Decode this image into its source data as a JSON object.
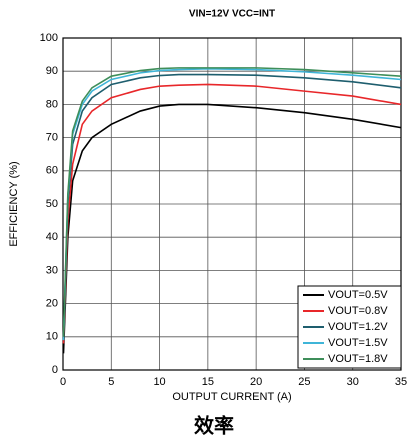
{
  "chart_data": {
    "type": "line",
    "title": "VIN=12V VCC=INT",
    "x_label": "OUTPUT CURRENT (A)",
    "y_label": "EFFICIENCY (%)",
    "caption": "效率",
    "x": [
      0.05,
      0.5,
      1,
      2,
      3,
      5,
      8,
      10,
      12,
      15,
      20,
      25,
      30,
      35
    ],
    "series": [
      {
        "name": "VOUT=0.5V",
        "color": "#000000",
        "values": [
          5,
          40,
          57,
          66,
          70,
          74,
          78,
          79.5,
          80,
          80,
          79,
          77.5,
          75.5,
          73
        ]
      },
      {
        "name": "VOUT=0.8V",
        "color": "#e8272a",
        "values": [
          8,
          45,
          62,
          74,
          78,
          82,
          84.5,
          85.5,
          85.8,
          86,
          85.5,
          84,
          82.5,
          80
        ]
      },
      {
        "name": "VOUT=1.2V",
        "color": "#1e5e6e",
        "values": [
          9,
          50,
          68,
          78,
          82,
          86,
          88,
          88.7,
          89,
          89,
          88.8,
          88,
          86.8,
          85
        ]
      },
      {
        "name": "VOUT=1.5V",
        "color": "#3fb5d8",
        "values": [
          9,
          52,
          71,
          80,
          84,
          87.5,
          89.5,
          90.2,
          90.5,
          90.7,
          90.5,
          89.8,
          88.8,
          87.5
        ]
      },
      {
        "name": "VOUT=1.8V",
        "color": "#3e8e5a",
        "values": [
          10,
          53,
          72,
          81,
          85,
          88.5,
          90.2,
          90.8,
          91,
          91,
          91,
          90.5,
          89.5,
          88.5
        ]
      }
    ],
    "xlim": [
      0,
      35
    ],
    "xticks": [
      0,
      5,
      10,
      15,
      20,
      25,
      30,
      35
    ],
    "ylim": [
      0,
      100
    ],
    "yticks": [
      0,
      10,
      20,
      30,
      40,
      50,
      60,
      70,
      80,
      90,
      100
    ],
    "grid": true,
    "legend": "lower right"
  }
}
